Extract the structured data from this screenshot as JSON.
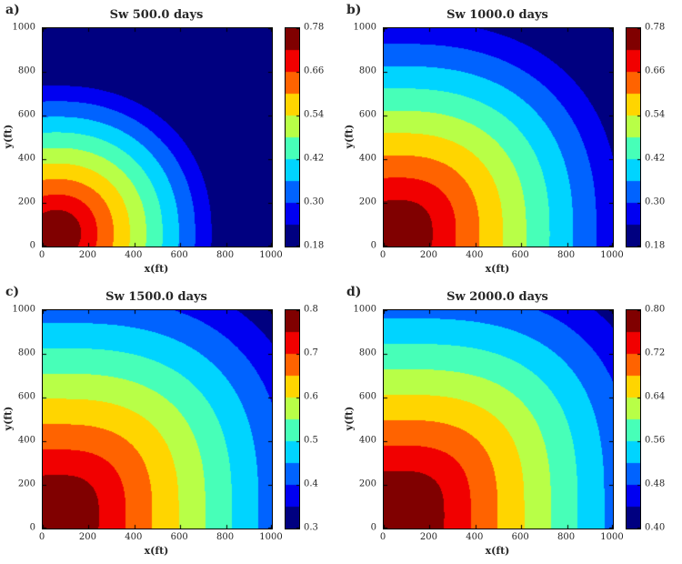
{
  "figure": {
    "background": "#ffffff",
    "text_color": "#262626",
    "colormap_extremes": {
      "low": "#000080",
      "high": "#800000"
    }
  },
  "chart_data": [
    {
      "type": "heatmap",
      "subtype": "filled_contour",
      "panel_label": "a)",
      "title": "Sw 500.0 days",
      "xlabel": "x(ft)",
      "ylabel": "y(ft)",
      "xlim": [
        0,
        1000
      ],
      "ylim": [
        0,
        1000
      ],
      "x_ticks": [
        0,
        200,
        400,
        600,
        800,
        1000
      ],
      "y_ticks": [
        0,
        200,
        400,
        600,
        800,
        1000
      ],
      "x_tick_labels": [
        "0",
        "200",
        "400",
        "600",
        "800",
        "1000"
      ],
      "y_tick_labels": [
        "0",
        "200",
        "400",
        "600",
        "800",
        "1000"
      ],
      "colormap": "jet",
      "n_bands": 10,
      "cmin": 0.18,
      "cmax": 0.78,
      "levels": [
        0.18,
        0.24,
        0.3,
        0.36,
        0.42,
        0.48,
        0.54,
        0.6,
        0.66,
        0.72,
        0.78
      ],
      "colorbar_tick_values": [
        0.78,
        0.66,
        0.54,
        0.42,
        0.3,
        0.18
      ],
      "colorbar_tick_labels": [
        "0.78",
        "0.66",
        "0.54",
        "0.42",
        "0.30",
        "0.18"
      ],
      "field_model": {
        "description": "water-saturation front spreading radially from injector near bottom-left corner",
        "center_ft": [
          60,
          60
        ],
        "sw_well": 0.81,
        "sw_far": 0.17,
        "front_radius_ft": 760,
        "superellipse_p": 2.2
      }
    },
    {
      "type": "heatmap",
      "subtype": "filled_contour",
      "panel_label": "b)",
      "title": "Sw 1000.0 days",
      "xlabel": "x(ft)",
      "ylabel": "y(ft)",
      "xlim": [
        0,
        1000
      ],
      "ylim": [
        0,
        1000
      ],
      "x_ticks": [
        0,
        200,
        400,
        600,
        800,
        1000
      ],
      "y_ticks": [
        0,
        200,
        400,
        600,
        800,
        1000
      ],
      "x_tick_labels": [
        "0",
        "200",
        "400",
        "600",
        "800",
        "1000"
      ],
      "y_tick_labels": [
        "0",
        "200",
        "400",
        "600",
        "800",
        "1000"
      ],
      "colormap": "jet",
      "n_bands": 10,
      "cmin": 0.18,
      "cmax": 0.78,
      "levels": [
        0.18,
        0.24,
        0.3,
        0.36,
        0.42,
        0.48,
        0.54,
        0.6,
        0.66,
        0.72,
        0.78
      ],
      "colorbar_tick_values": [
        0.78,
        0.66,
        0.54,
        0.42,
        0.3,
        0.18
      ],
      "colorbar_tick_labels": [
        "0.78",
        "0.66",
        "0.54",
        "0.42",
        "0.30",
        "0.18"
      ],
      "field_model": {
        "description": "water-saturation front spreading radially from injector near bottom-left corner",
        "center_ft": [
          60,
          60
        ],
        "sw_well": 0.81,
        "sw_far": 0.17,
        "front_radius_ft": 1090,
        "superellipse_p": 2.5
      }
    },
    {
      "type": "heatmap",
      "subtype": "filled_contour",
      "panel_label": "c)",
      "title": "Sw 1500.0 days",
      "xlabel": "x(ft)",
      "ylabel": "y(ft)",
      "xlim": [
        0,
        1000
      ],
      "ylim": [
        0,
        1000
      ],
      "x_ticks": [
        0,
        200,
        400,
        600,
        800,
        1000
      ],
      "y_ticks": [
        0,
        200,
        400,
        600,
        800,
        1000
      ],
      "x_tick_labels": [
        "0",
        "200",
        "400",
        "600",
        "800",
        "1000"
      ],
      "y_tick_labels": [
        "0",
        "200",
        "400",
        "600",
        "800",
        "1000"
      ],
      "colormap": "jet",
      "n_bands": 10,
      "cmin": 0.3,
      "cmax": 0.8,
      "levels": [
        0.3,
        0.35,
        0.4,
        0.45,
        0.5,
        0.55,
        0.6,
        0.65,
        0.7,
        0.75,
        0.8
      ],
      "colorbar_tick_values": [
        0.8,
        0.7,
        0.6,
        0.5,
        0.4,
        0.3
      ],
      "colorbar_tick_labels": [
        "0.8",
        "0.7",
        "0.6",
        "0.5",
        "0.4",
        "0.3"
      ],
      "field_model": {
        "description": "water-saturation front spreading radially from injector near bottom-left corner",
        "center_ft": [
          60,
          60
        ],
        "sw_well": 0.83,
        "sw_far": 0.27,
        "front_radius_ft": 1300,
        "superellipse_p": 2.8
      }
    },
    {
      "type": "heatmap",
      "subtype": "filled_contour",
      "panel_label": "d)",
      "title": "Sw 2000.0 days",
      "xlabel": "x(ft)",
      "ylabel": "y(ft)",
      "xlim": [
        0,
        1000
      ],
      "ylim": [
        0,
        1000
      ],
      "x_ticks": [
        0,
        200,
        400,
        600,
        800,
        1000
      ],
      "y_ticks": [
        0,
        200,
        400,
        600,
        800,
        1000
      ],
      "x_tick_labels": [
        "0",
        "200",
        "400",
        "600",
        "800",
        "1000"
      ],
      "y_tick_labels": [
        "0",
        "200",
        "400",
        "600",
        "800",
        "1000"
      ],
      "colormap": "jet",
      "n_bands": 10,
      "cmin": 0.4,
      "cmax": 0.8,
      "levels": [
        0.4,
        0.44,
        0.48,
        0.52,
        0.56,
        0.6,
        0.64,
        0.68,
        0.72,
        0.76,
        0.8
      ],
      "colorbar_tick_values": [
        0.8,
        0.72,
        0.64,
        0.56,
        0.48,
        0.4
      ],
      "colorbar_tick_labels": [
        "0.80",
        "0.72",
        "0.64",
        "0.56",
        "0.48",
        "0.40"
      ],
      "field_model": {
        "description": "water-saturation front spreading radially from injector near bottom-left corner",
        "center_ft": [
          60,
          60
        ],
        "sw_well": 0.83,
        "sw_far": 0.37,
        "front_radius_ft": 1340,
        "superellipse_p": 3.0
      }
    }
  ]
}
